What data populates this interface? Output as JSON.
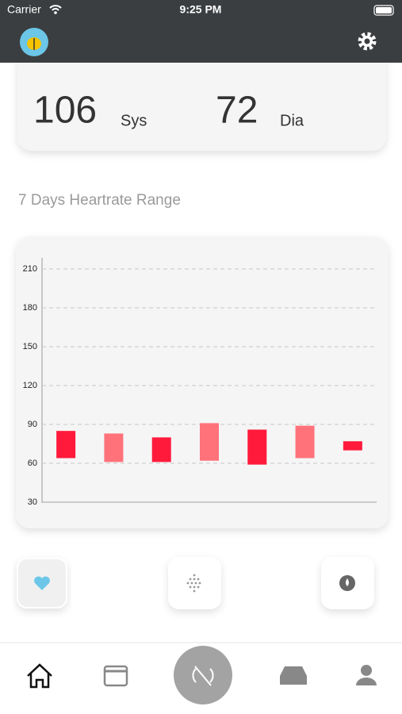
{
  "status_bar": {
    "carrier": "Carrier",
    "time": "9:25 PM"
  },
  "pressure": {
    "systolic": 106,
    "systolic_label": "Sys",
    "diastolic": 72,
    "diastolic_label": "Dia"
  },
  "section_title": "7 Days Heartrate Range",
  "chart_data": {
    "type": "range-bar",
    "categories": [
      null,
      null,
      null,
      null,
      null,
      null,
      null
    ],
    "lows": [
      64,
      61,
      61,
      62,
      59,
      64,
      70
    ],
    "highs": [
      85,
      83,
      80,
      91,
      86,
      89,
      77
    ],
    "colors": [
      "#ff1a3c",
      "#ff727a",
      "#ff1a3c",
      "#ff727a",
      "#ff1a3c",
      "#ff727a",
      "#ff1a3c"
    ],
    "ylim": [
      30,
      210
    ],
    "yticks": [
      30,
      60,
      90,
      120,
      150,
      180,
      210
    ],
    "grid": true
  }
}
